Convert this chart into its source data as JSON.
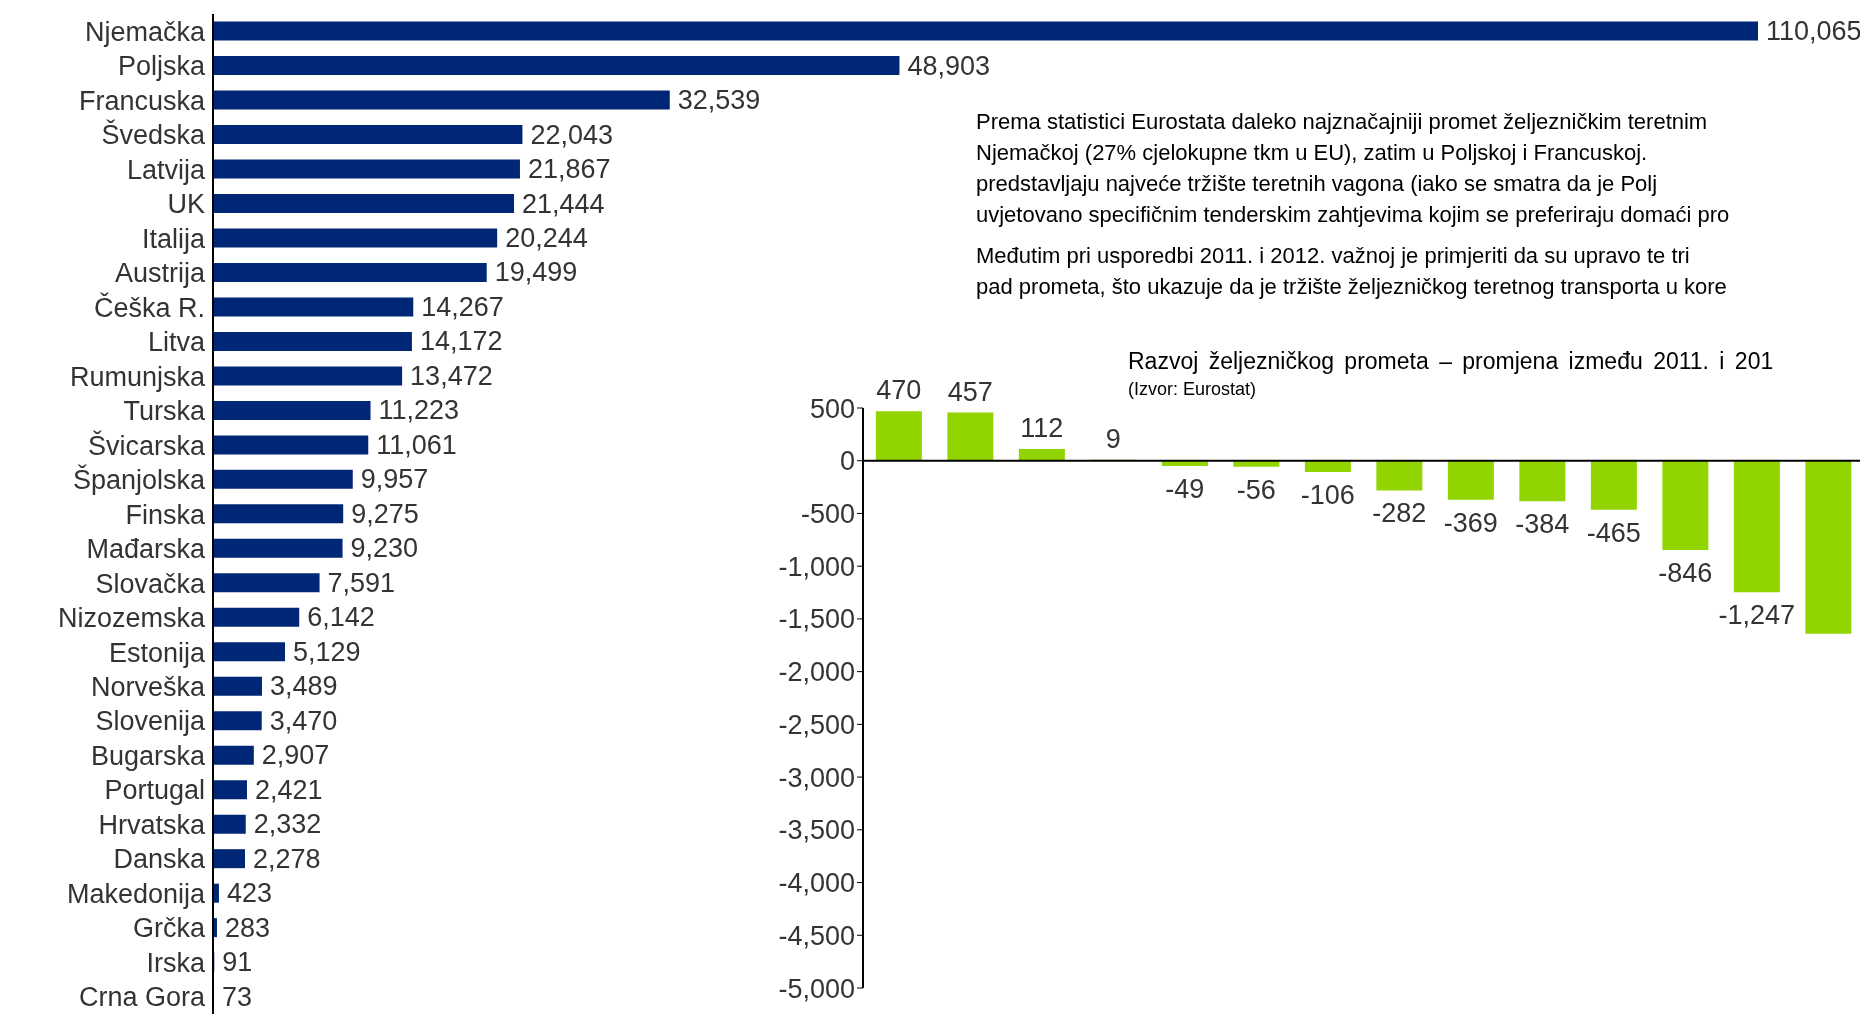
{
  "chart_data": [
    {
      "type": "bar",
      "orientation": "horizontal",
      "categories": [
        "Njemačka",
        "Poljska",
        "Francuska",
        "Švedska",
        "Latvija",
        "UK",
        "Italija",
        "Austrija",
        "Češka R.",
        "Litva",
        "Rumunjska",
        "Turska",
        "Švicarska",
        "Španjolska",
        "Finska",
        "Mađarska",
        "Slovačka",
        "Nizozemska",
        "Estonija",
        "Norveška",
        "Slovenija",
        "Bugarska",
        "Portugal",
        "Hrvatska",
        "Danska",
        "Makedonija",
        "Grčka",
        "Irska",
        "Crna Gora"
      ],
      "values": [
        110065,
        48903,
        32539,
        22043,
        21867,
        21444,
        20244,
        19499,
        14267,
        14172,
        13472,
        11223,
        11061,
        9957,
        9275,
        9230,
        7591,
        6142,
        5129,
        3489,
        3470,
        2907,
        2421,
        2332,
        2278,
        423,
        283,
        91,
        73
      ],
      "value_labels": [
        "110,065",
        "48,903",
        "32,539",
        "22,043",
        "21,867",
        "21,444",
        "20,244",
        "19,499",
        "14,267",
        "14,172",
        "13,472",
        "11,223",
        "11,061",
        "9,957",
        "9,275",
        "9,230",
        "7,591",
        "6,142",
        "5,129",
        "3,489",
        "3,470",
        "2,907",
        "2,421",
        "2,332",
        "2,278",
        "423",
        "283",
        "91",
        "73"
      ],
      "color": "#002776",
      "tick_labels": "y"
    },
    {
      "type": "bar",
      "title": "Razvoj željezničkog prometa – promjena između 2011. i 201",
      "subtitle": "(Izvor: Eurostat)",
      "categories": [
        null,
        null,
        null,
        null,
        null,
        null,
        null,
        null,
        null,
        null,
        null,
        null,
        null,
        null
      ],
      "values": [
        470,
        457,
        112,
        9,
        -49,
        -56,
        -106,
        -282,
        -369,
        -384,
        -465,
        -846,
        -1247,
        -1640
      ],
      "value_labels": [
        "470",
        "457",
        "112",
        "9",
        "-49",
        "-56",
        "-106",
        "-282",
        "-369",
        "-384",
        "-465",
        "-846",
        "-1,247",
        null
      ],
      "color": "#92d400",
      "ylim": [
        -5000,
        500
      ],
      "yticks": [
        500,
        {
          "value": 0,
          "label": "0"
        },
        {
          "value": -500,
          "label": "-500"
        },
        {
          "value": -1000,
          "label": "-1,000"
        },
        {
          "value": -1500,
          "label": "-1,500"
        },
        {
          "value": -2000,
          "label": "-2,000"
        },
        {
          "value": -2500,
          "label": "-2,500"
        },
        {
          "value": -3000,
          "label": "-3,000"
        },
        {
          "value": -3500,
          "label": "-3,500"
        },
        {
          "value": -4000,
          "label": "-4,000"
        },
        {
          "value": -4500,
          "label": "-4,500"
        },
        {
          "value": -5000,
          "label": "-5,000"
        }
      ],
      "tick_labels": "y"
    },
    {
      "type": "other",
      "annotations": [
        "Prema statistici Eurostata daleko najznačajniji promet željezničkim teretnim",
        "Njemačkoj (27% cjelokupne tkm u EU), zatim u Poljskoj i Francuskoj.",
        "predstavljaju najveće tržište teretnih vagona (iako se smatra da je Polj",
        "uvjetovano specifičnim tenderskim zahtjevima kojim se preferiraju domaći pro",
        "Međutim pri usporedbi 2011. i 2012. važnoj je primjeriti da su upravo te tri",
        "pad prometa, što ukazuje da je tržište željezničkog teretnog transporta u kore"
      ]
    }
  ]
}
